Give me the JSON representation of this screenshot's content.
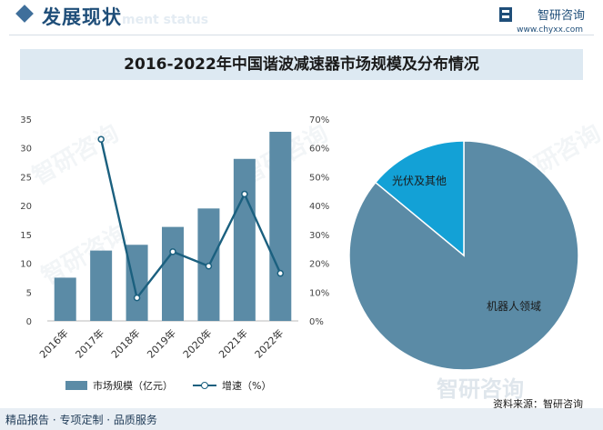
{
  "header": {
    "title": "发展现状",
    "subtitle_en": "ment status",
    "brand_name": "智研咨询",
    "brand_url": "www.chyxx.com"
  },
  "watermark": "智研咨询",
  "footer": {
    "text": "精品报告 · 专项定制 · 品质服务",
    "source": "资料来源：智研咨询"
  },
  "colors": {
    "bar": "#5b8ba6",
    "line": "#1b607f",
    "pie_main": "#5b8ba6",
    "pie_minor": "#13a1d6"
  },
  "chart_data": [
    {
      "type": "bar",
      "title": "2016-2022年中国谐波减速器市场规模及分布情况",
      "categories": [
        "2016年",
        "2017年",
        "2018年",
        "2019年",
        "2020年",
        "2021年",
        "2022年"
      ],
      "series": [
        {
          "name": "市场规模（亿元）",
          "type": "bar",
          "axis": "left",
          "values": [
            7.5,
            12.2,
            13.2,
            16.3,
            19.5,
            28.1,
            32.8
          ]
        },
        {
          "name": "增速（%）",
          "type": "line",
          "axis": "right",
          "values": [
            null,
            63,
            8,
            24,
            19,
            44,
            16.5
          ]
        }
      ],
      "left_axis": {
        "ylim": [
          0,
          35
        ],
        "ticks": [
          "0",
          "5",
          "10",
          "15",
          "20",
          "25",
          "30",
          "35"
        ]
      },
      "right_axis": {
        "ylim": [
          0,
          70
        ],
        "ticks": [
          "0%",
          "10%",
          "20%",
          "30%",
          "40%",
          "50%",
          "60%",
          "70%"
        ]
      },
      "legend_position": "bottom"
    },
    {
      "type": "pie",
      "slices": [
        {
          "label": "机器人领域",
          "value": 86
        },
        {
          "label": "光伏及其他",
          "value": 14
        }
      ]
    }
  ]
}
